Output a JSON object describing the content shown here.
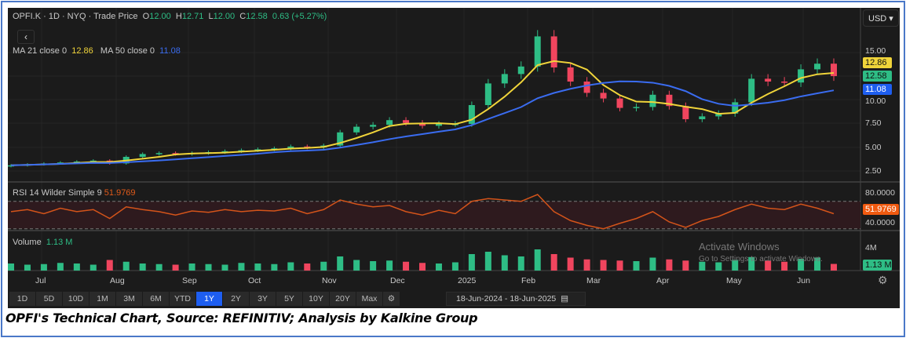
{
  "header": {
    "symbol_line": "OPFI.K · 1D · NYQ · Trade Price",
    "o_label": "O",
    "o": "12.00",
    "h_label": "H",
    "h": "12.71",
    "l_label": "L",
    "l": "12.00",
    "c_label": "C",
    "c": "12.58",
    "change": "0.63 (+5.27%)",
    "back_icon": "chevron-left-icon",
    "currency": "USD"
  },
  "ma": {
    "ma21_label": "MA 21 close 0",
    "ma21_value": "12.86",
    "ma50_label": "MA 50 close 0",
    "ma50_value": "11.08"
  },
  "rsi": {
    "label": "RSI 14 Wilder Simple 9",
    "value": "51.9769"
  },
  "volume": {
    "label": "Volume",
    "value": "1.13 M",
    "axis_label": "4M"
  },
  "colors": {
    "up": "#2ebd85",
    "down": "#f0455e",
    "ma21": "#f0d43a",
    "ma50": "#3a6cf0",
    "rsi": "#d4541a",
    "background": "#1b1b1b"
  },
  "chart_data": {
    "type": "candlestick",
    "price_axis_ticks": [
      "15.00",
      "12.50",
      "10.00",
      "7.50",
      "5.00",
      "2.50"
    ],
    "price_tags": {
      "ma21": "12.86",
      "close": "12.58",
      "ma50": "11.08"
    },
    "rsi_axis_ticks": [
      "80.0000",
      "40.0000"
    ],
    "x_tick_labels": [
      "Jul",
      "Aug",
      "Sep",
      "Oct",
      "Nov",
      "Dec",
      "2025",
      "Feb",
      "Mar",
      "Apr",
      "May",
      "Jun"
    ],
    "weekly_close": [
      3.1,
      3.2,
      3.3,
      3.4,
      3.5,
      3.6,
      3.3,
      4.0,
      4.3,
      4.4,
      4.3,
      4.4,
      4.5,
      4.6,
      4.7,
      4.8,
      4.9,
      5.1,
      5.0,
      5.2,
      6.6,
      7.2,
      7.4,
      7.9,
      7.6,
      7.3,
      7.5,
      7.5,
      9.5,
      11.8,
      12.8,
      13.6,
      16.8,
      13.5,
      12.0,
      10.8,
      10.2,
      9.2,
      9.3,
      10.6,
      9.4,
      8.0,
      8.3,
      8.6,
      9.8,
      12.3,
      12.0,
      11.9,
      13.3,
      13.9,
      12.58
    ],
    "rsi_values": [
      55,
      58,
      52,
      60,
      55,
      58,
      45,
      62,
      58,
      55,
      50,
      56,
      54,
      58,
      55,
      57,
      56,
      60,
      52,
      58,
      72,
      66,
      62,
      64,
      55,
      50,
      57,
      52,
      70,
      74,
      72,
      70,
      80,
      55,
      42,
      35,
      30,
      38,
      45,
      55,
      40,
      32,
      42,
      48,
      58,
      66,
      60,
      58,
      66,
      60,
      52
    ],
    "volume_millions": [
      1.2,
      1.0,
      1.1,
      1.3,
      1.2,
      1.0,
      1.8,
      1.5,
      1.2,
      1.1,
      1.0,
      1.2,
      1.1,
      1.0,
      1.3,
      1.2,
      1.1,
      1.4,
      1.2,
      1.5,
      2.4,
      1.8,
      1.6,
      1.7,
      1.5,
      1.3,
      1.2,
      1.4,
      2.8,
      3.2,
      2.6,
      2.4,
      3.6,
      2.8,
      2.2,
      1.9,
      1.8,
      1.7,
      1.6,
      2.2,
      1.9,
      1.7,
      1.5,
      1.4,
      1.8,
      2.3,
      1.7,
      1.5,
      2.0,
      2.2,
      1.13
    ]
  },
  "toolbar": {
    "ranges": [
      "1D",
      "5D",
      "10D",
      "1M",
      "3M",
      "6M",
      "YTD",
      "1Y",
      "2Y",
      "3Y",
      "5Y",
      "10Y",
      "20Y",
      "Max"
    ],
    "active": "1Y",
    "date_from": "18-Jun-2024",
    "date_sep": "-",
    "date_to": "18-Jun-2025"
  },
  "watermark": {
    "title": "Activate Windows",
    "subtitle": "Go to Settings to activate Windows."
  },
  "caption": "OPFI's Technical Chart, Source: REFINITIV; Analysis by Kalkine Group"
}
